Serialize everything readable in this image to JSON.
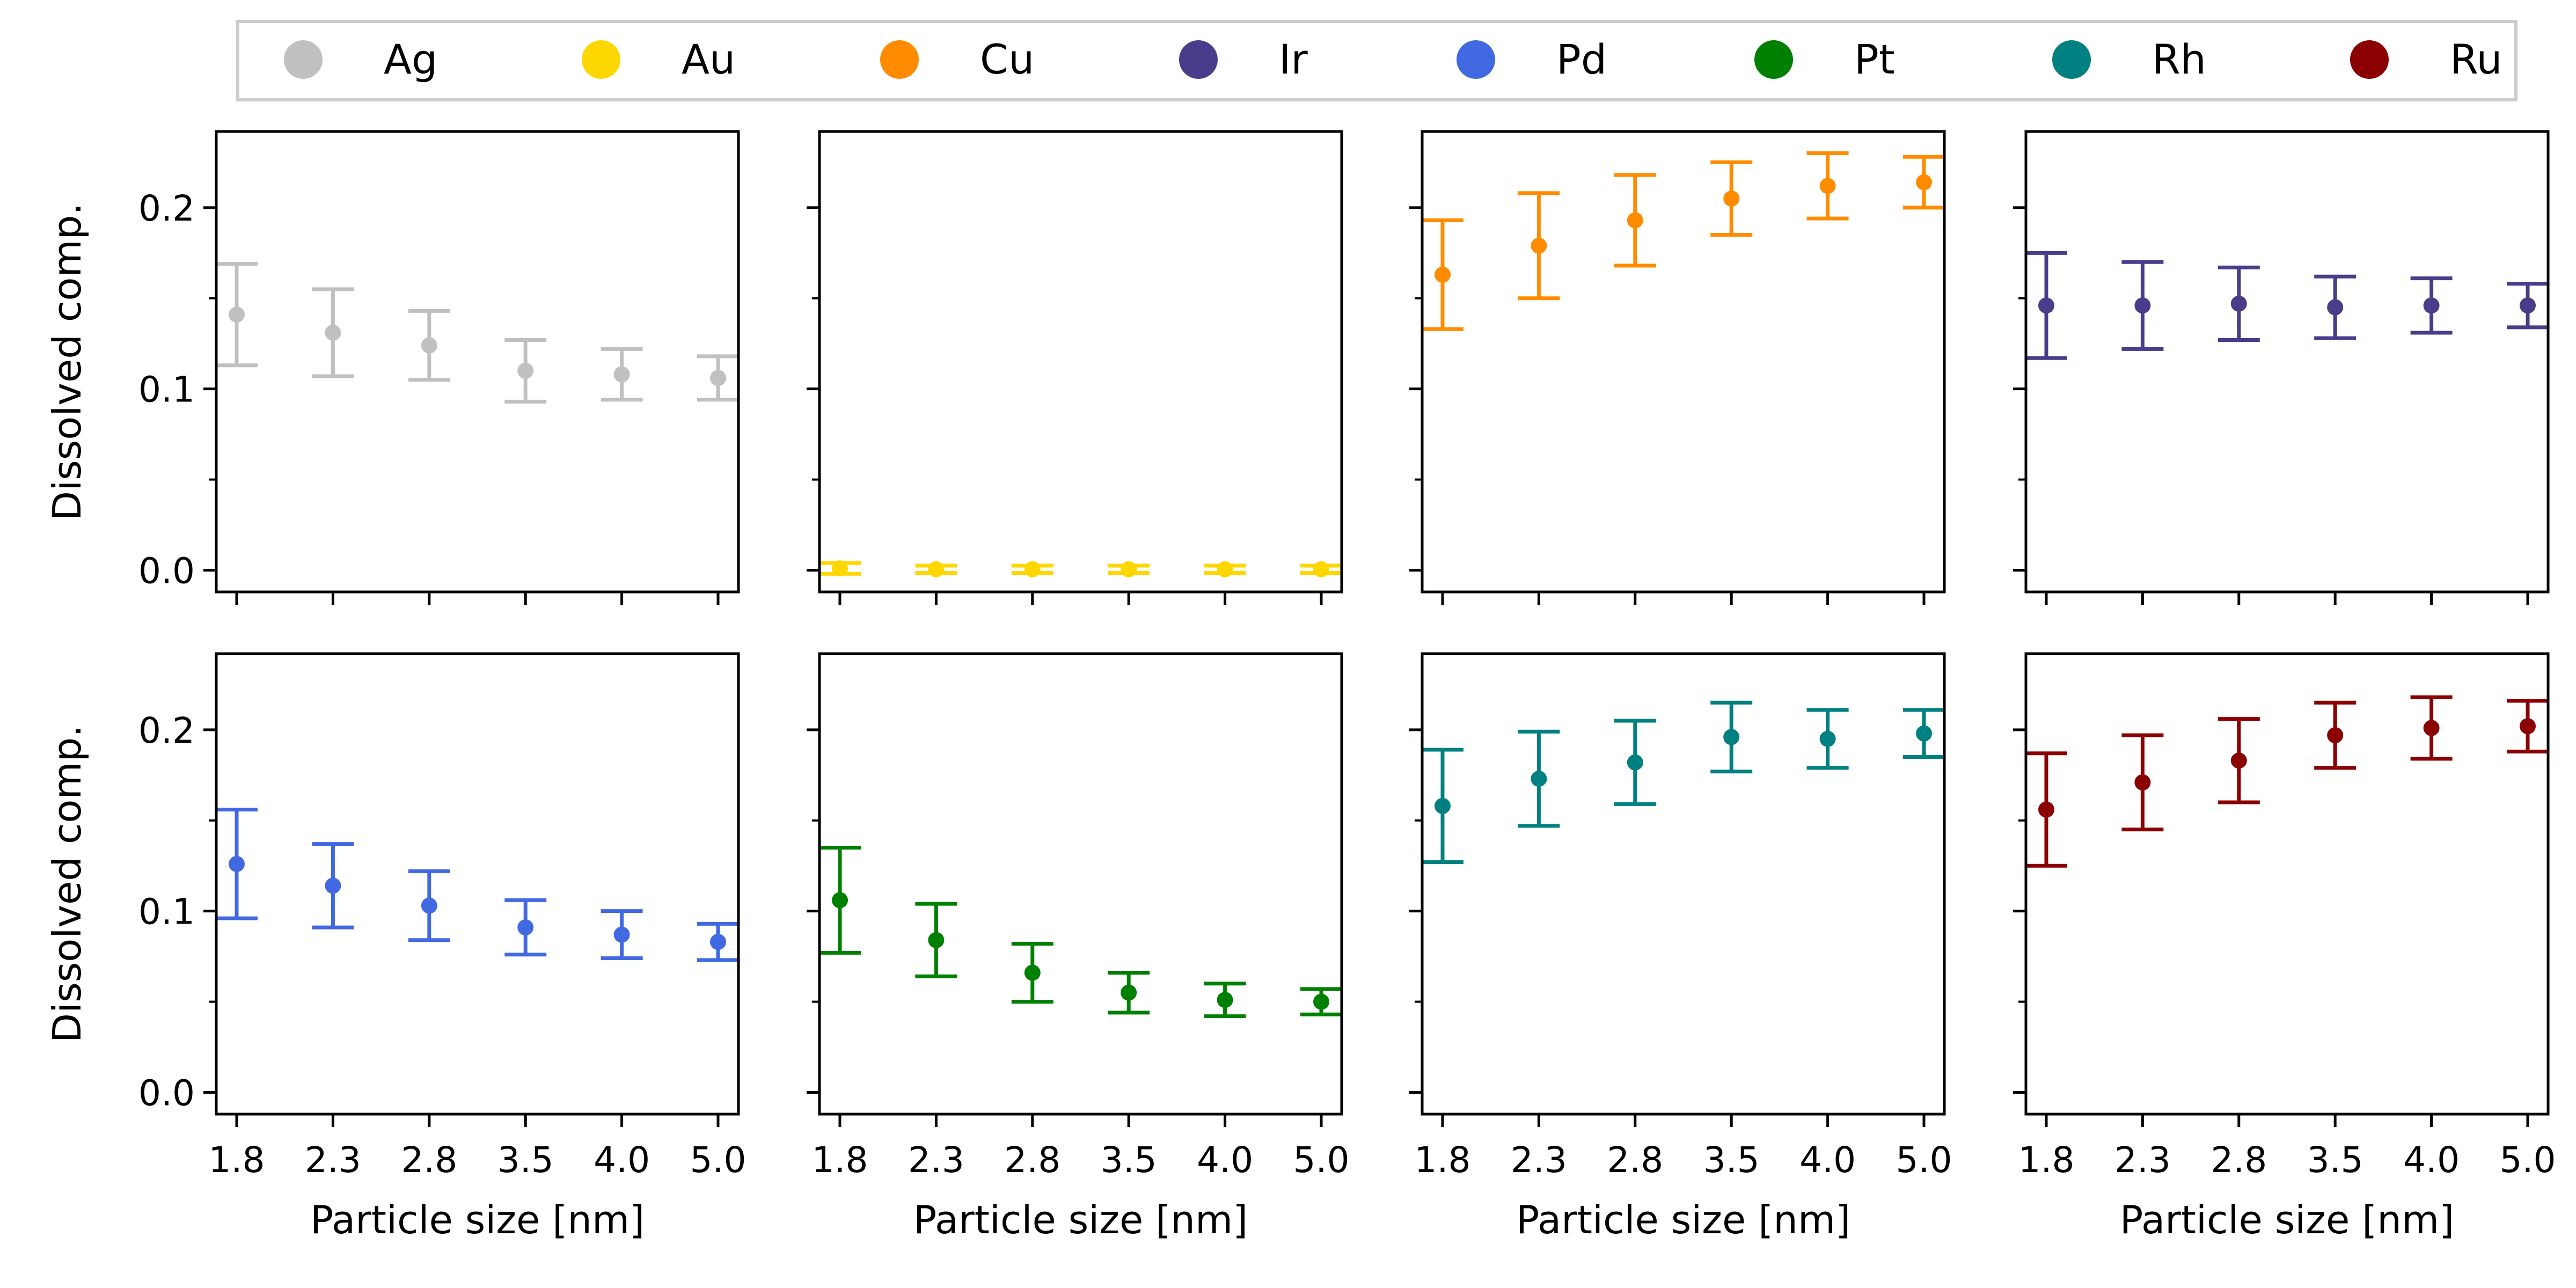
{
  "figure": {
    "xlabel": "Particle size [nm]",
    "ylabel": "Dissolved comp."
  },
  "legend": {
    "placement": "top",
    "items": [
      {
        "label": "Ag",
        "color": "#c0c0c0"
      },
      {
        "label": "Au",
        "color": "#ffd700"
      },
      {
        "label": "Cu",
        "color": "#ff8c00"
      },
      {
        "label": "Ir",
        "color": "#483d8b"
      },
      {
        "label": "Pd",
        "color": "#4169e1"
      },
      {
        "label": "Pt",
        "color": "#008000"
      },
      {
        "label": "Rh",
        "color": "#008080"
      },
      {
        "label": "Ru",
        "color": "#8b0000"
      }
    ]
  },
  "chart_data": [
    {
      "type": "scatter",
      "element": "Ag",
      "color": "#c0c0c0",
      "categories": [
        "1.8",
        "2.3",
        "2.8",
        "3.5",
        "4.0",
        "5.0"
      ],
      "values": [
        0.141,
        0.131,
        0.124,
        0.11,
        0.108,
        0.106
      ],
      "error": [
        0.028,
        0.024,
        0.019,
        0.017,
        0.014,
        0.012
      ],
      "xlabel": "",
      "ylabel": "Dissolved comp.",
      "yticks": [
        "0.0",
        "0.1",
        "0.2"
      ],
      "ylim": [
        -0.012,
        0.242
      ],
      "grid": false
    },
    {
      "type": "scatter",
      "element": "Au",
      "color": "#ffd700",
      "categories": [
        "1.8",
        "2.3",
        "2.8",
        "3.5",
        "4.0",
        "5.0"
      ],
      "values": [
        0.001,
        0.0005,
        0.0005,
        0.0005,
        0.0005,
        0.0005
      ],
      "error": [
        0.003,
        0.002,
        0.002,
        0.002,
        0.002,
        0.002
      ],
      "xlabel": "",
      "ylabel": "",
      "ylim": [
        -0.012,
        0.242
      ],
      "grid": false
    },
    {
      "type": "scatter",
      "element": "Cu",
      "color": "#ff8c00",
      "categories": [
        "1.8",
        "2.3",
        "2.8",
        "3.5",
        "4.0",
        "5.0"
      ],
      "values": [
        0.163,
        0.179,
        0.193,
        0.205,
        0.212,
        0.214
      ],
      "error": [
        0.03,
        0.029,
        0.025,
        0.02,
        0.018,
        0.014
      ],
      "xlabel": "",
      "ylabel": "",
      "ylim": [
        -0.012,
        0.242
      ],
      "grid": false
    },
    {
      "type": "scatter",
      "element": "Ir",
      "color": "#483d8b",
      "categories": [
        "1.8",
        "2.3",
        "2.8",
        "3.5",
        "4.0",
        "5.0"
      ],
      "values": [
        0.146,
        0.146,
        0.147,
        0.145,
        0.146,
        0.146
      ],
      "error": [
        0.029,
        0.024,
        0.02,
        0.017,
        0.015,
        0.012
      ],
      "xlabel": "",
      "ylabel": "",
      "ylim": [
        -0.012,
        0.242
      ],
      "grid": false
    },
    {
      "type": "scatter",
      "element": "Pd",
      "color": "#4169e1",
      "categories": [
        "1.8",
        "2.3",
        "2.8",
        "3.5",
        "4.0",
        "5.0"
      ],
      "values": [
        0.126,
        0.114,
        0.103,
        0.091,
        0.087,
        0.083
      ],
      "error": [
        0.03,
        0.023,
        0.019,
        0.015,
        0.013,
        0.01
      ],
      "xlabel": "Particle size [nm]",
      "ylabel": "Dissolved comp.",
      "yticks": [
        "0.0",
        "0.1",
        "0.2"
      ],
      "ylim": [
        -0.012,
        0.242
      ],
      "grid": false
    },
    {
      "type": "scatter",
      "element": "Pt",
      "color": "#008000",
      "categories": [
        "1.8",
        "2.3",
        "2.8",
        "3.5",
        "4.0",
        "5.0"
      ],
      "values": [
        0.106,
        0.084,
        0.066,
        0.055,
        0.051,
        0.05
      ],
      "error": [
        0.029,
        0.02,
        0.016,
        0.011,
        0.009,
        0.007
      ],
      "xlabel": "Particle size [nm]",
      "ylabel": "",
      "ylim": [
        -0.012,
        0.242
      ],
      "grid": false
    },
    {
      "type": "scatter",
      "element": "Rh",
      "color": "#008080",
      "categories": [
        "1.8",
        "2.3",
        "2.8",
        "3.5",
        "4.0",
        "5.0"
      ],
      "values": [
        0.158,
        0.173,
        0.182,
        0.196,
        0.195,
        0.198
      ],
      "error": [
        0.031,
        0.026,
        0.023,
        0.019,
        0.016,
        0.013
      ],
      "xlabel": "Particle size [nm]",
      "ylabel": "",
      "ylim": [
        -0.012,
        0.242
      ],
      "grid": false
    },
    {
      "type": "scatter",
      "element": "Ru",
      "color": "#8b0000",
      "categories": [
        "1.8",
        "2.3",
        "2.8",
        "3.5",
        "4.0",
        "5.0"
      ],
      "values": [
        0.156,
        0.171,
        0.183,
        0.197,
        0.201,
        0.202
      ],
      "error": [
        0.031,
        0.026,
        0.023,
        0.018,
        0.017,
        0.014
      ],
      "xlabel": "Particle size [nm]",
      "ylabel": "",
      "ylim": [
        -0.012,
        0.242
      ],
      "grid": false
    }
  ]
}
